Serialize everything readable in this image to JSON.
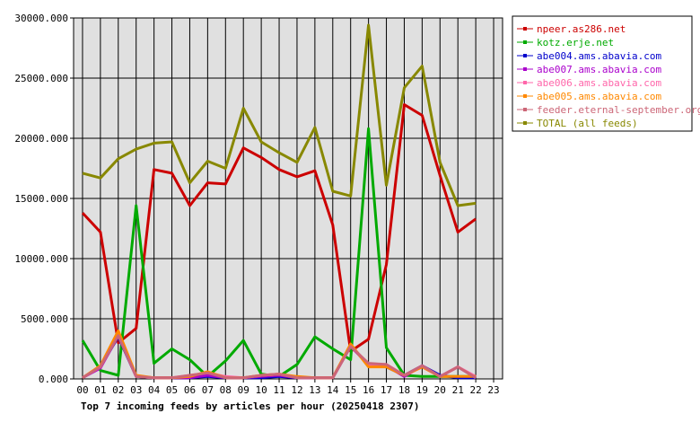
{
  "chart_data": {
    "type": "line",
    "title": "Top 7 incoming feeds by articles per hour (20250418 2307)",
    "x": [
      "00",
      "01",
      "02",
      "03",
      "04",
      "05",
      "06",
      "07",
      "08",
      "09",
      "10",
      "11",
      "12",
      "13",
      "14",
      "15",
      "16",
      "17",
      "18",
      "19",
      "20",
      "21",
      "22",
      "23"
    ],
    "yticks": [
      "0.000",
      "5000.000",
      "10000.000",
      "15000.000",
      "20000.000",
      "25000.000",
      "30000.000"
    ],
    "ylim": [
      0,
      30000
    ],
    "grid": true,
    "legend_position": "right",
    "series": [
      {
        "name": "npeer.as286.net",
        "color": "#cc0000",
        "values": [
          13800,
          12200,
          3000,
          4200,
          17400,
          17100,
          14400,
          16300,
          16200,
          19200,
          18400,
          17400,
          16800,
          17300,
          12800,
          2300,
          3300,
          9500,
          22800,
          21900,
          16900,
          12200,
          13300,
          null
        ]
      },
      {
        "name": "kotz.erje.net",
        "color": "#00aa00",
        "values": [
          3200,
          700,
          300,
          14400,
          1300,
          2500,
          1600,
          200,
          1500,
          3200,
          400,
          200,
          1200,
          3500,
          2500,
          1600,
          20800,
          2600,
          300,
          200,
          200,
          200,
          200,
          null
        ]
      },
      {
        "name": "abe004.ams.abavia.com",
        "color": "#0000cc",
        "values": [
          100,
          1000,
          3500,
          200,
          100,
          100,
          100,
          200,
          100,
          100,
          100,
          200,
          100,
          100,
          100,
          2800,
          1100,
          1000,
          300,
          1100,
          300,
          100,
          100,
          null
        ]
      },
      {
        "name": "abe007.ams.abavia.com",
        "color": "#aa00cc",
        "values": [
          100,
          900,
          3600,
          200,
          100,
          100,
          100,
          300,
          100,
          100,
          200,
          300,
          100,
          100,
          100,
          2700,
          1200,
          1100,
          200,
          1100,
          200,
          1000,
          100,
          null
        ]
      },
      {
        "name": "abe006.ams.abavia.com",
        "color": "#ff66aa",
        "values": [
          100,
          1000,
          3700,
          200,
          100,
          100,
          300,
          500,
          200,
          100,
          300,
          400,
          100,
          100,
          100,
          2800,
          1200,
          1200,
          300,
          1000,
          200,
          1000,
          200,
          null
        ]
      },
      {
        "name": "abe005.ams.abavia.com",
        "color": "#ff8800",
        "values": [
          100,
          1100,
          4000,
          300,
          100,
          100,
          200,
          600,
          100,
          100,
          300,
          400,
          200,
          100,
          100,
          2900,
          1000,
          1000,
          300,
          1000,
          200,
          200,
          200,
          null
        ]
      },
      {
        "name": "feeder.eternal-september.org",
        "color": "#cc6677",
        "values": [
          100,
          1000,
          3600,
          200,
          100,
          100,
          300,
          500,
          100,
          100,
          300,
          400,
          100,
          100,
          100,
          2700,
          1300,
          1200,
          300,
          1100,
          200,
          1000,
          100,
          null
        ]
      },
      {
        "name": "TOTAL (all feeds)",
        "color": "#888800",
        "values": [
          17100,
          16700,
          18300,
          19100,
          19600,
          19700,
          16300,
          18100,
          17500,
          22500,
          19700,
          18800,
          18000,
          20900,
          15600,
          15200,
          29400,
          16100,
          24200,
          26000,
          18000,
          14400,
          14600,
          null
        ]
      }
    ]
  }
}
